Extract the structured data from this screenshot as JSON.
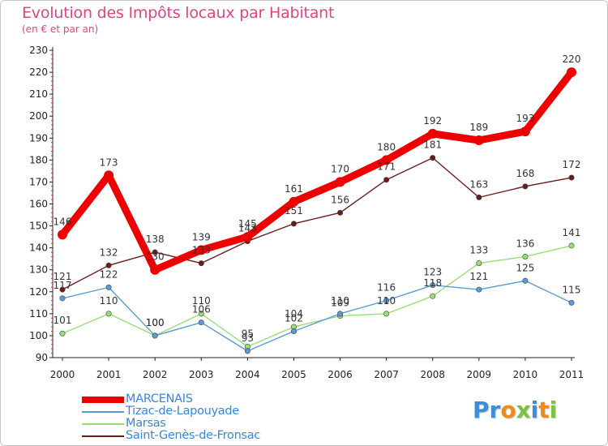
{
  "chart_data": {
    "type": "line",
    "title": "Evolution des Impôts locaux par Habitant",
    "subtitle": "(en € et par an)",
    "xlabel": "",
    "ylabel": "",
    "x": [
      "2000",
      "2001",
      "2002",
      "2003",
      "2004",
      "2005",
      "2006",
      "2007",
      "2008",
      "2009",
      "2010",
      "2011"
    ],
    "ylim": [
      90,
      230
    ],
    "yticks": [
      "90",
      "100",
      "110",
      "120",
      "130",
      "140",
      "150",
      "160",
      "170",
      "180",
      "190",
      "200",
      "210",
      "220",
      "230"
    ],
    "grid": false,
    "legend_position": "bottom-left",
    "series": [
      {
        "name": "Saint-Genès-de-Fronsac",
        "color": "#6b1b1b",
        "values": [
          121,
          132,
          138,
          133,
          143,
          151,
          156,
          171,
          181,
          163,
          168,
          172
        ]
      },
      {
        "name": "Marsas",
        "color": "#99dd77",
        "values": [
          101,
          110,
          100,
          110,
          95,
          104,
          109,
          110,
          118,
          133,
          136,
          141
        ]
      },
      {
        "name": "Tizac-de-Lapouyade",
        "color": "#5b9bd5",
        "values": [
          117,
          122,
          100,
          106,
          93,
          102,
          110,
          116,
          123,
          121,
          125,
          115
        ]
      },
      {
        "name": "MARCENAIS",
        "color": "#ee0000",
        "values": [
          146,
          173,
          130,
          139,
          145,
          161,
          170,
          180,
          192,
          189,
          193,
          220
        ]
      }
    ]
  },
  "legend": {
    "items": [
      {
        "label": "MARCENAIS",
        "color": "#ee0000"
      },
      {
        "label": "Tizac-de-Lapouyade",
        "color": "#5b9bd5"
      },
      {
        "label": "Marsas",
        "color": "#99dd77"
      },
      {
        "label": "Saint-Genès-de-Fronsac",
        "color": "#6b1b1b"
      }
    ]
  },
  "logo": {
    "letters": [
      "P",
      "r",
      "o",
      "x",
      "i",
      "t",
      "i"
    ],
    "colors": [
      "#3a8fd8",
      "#3a8fd8",
      "#f08a1c",
      "#7cc242",
      "#3a8fd8",
      "#f08a1c",
      "#7cc242"
    ]
  }
}
